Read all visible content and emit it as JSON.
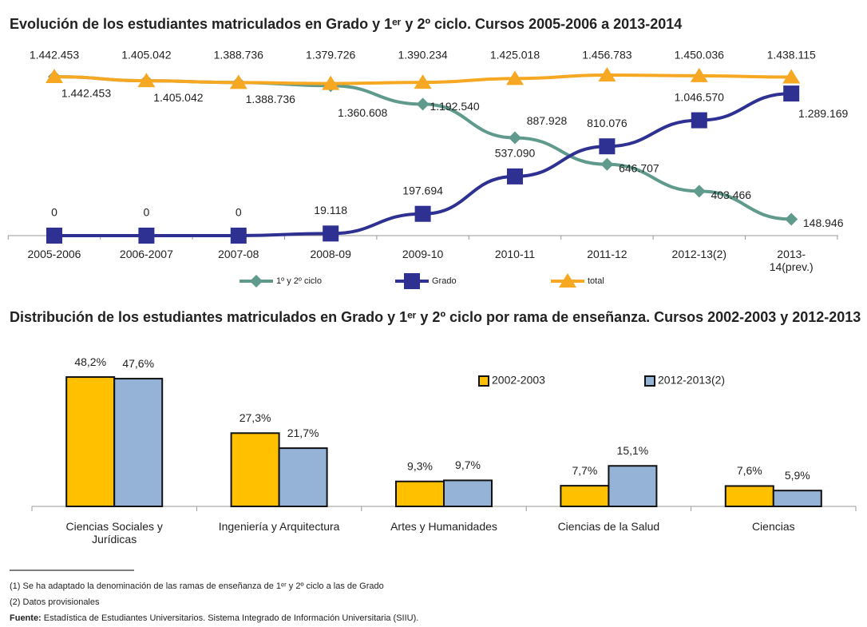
{
  "chart1": {
    "chart_data": {
      "type": "line",
      "title": "Evolución de los estudiantes matriculados en Grado y 1ᵉʳ y 2º ciclo. Cursos 2005-2006 a 2013-2014",
      "categories": [
        "2005-2006",
        "2006-2007",
        "2007-08",
        "2008-09",
        "2009-10",
        "2010-11",
        "2011-12",
        "2012-13(2)",
        "2013-14(prev.)"
      ],
      "ylim": [
        0,
        1500000
      ],
      "series": [
        {
          "name": "1º y 2º ciclo",
          "color": "#5f9a8c",
          "marker": "diamond",
          "values": [
            1442453,
            1405042,
            1388736,
            1360608,
            1192540,
            887928,
            646707,
            403466,
            148946
          ],
          "value_labels": [
            "1.442.453",
            "1.405.042",
            "1.388.736",
            "1.360.608",
            "1.192.540",
            "887.928",
            "646.707",
            "403.466",
            "148.946"
          ]
        },
        {
          "name": "Grado",
          "color": "#2e3192",
          "marker": "square",
          "values": [
            0,
            0,
            0,
            19118,
            197694,
            537090,
            810076,
            1046570,
            1289169
          ],
          "value_labels": [
            "0",
            "0",
            "0",
            "19.118",
            "197.694",
            "537.090",
            "810.076",
            "1.046.570",
            "1.289.169"
          ]
        },
        {
          "name": "total",
          "color": "#f7a823",
          "marker": "triangle",
          "values": [
            1442453,
            1405042,
            1388736,
            1379726,
            1390234,
            1425018,
            1456783,
            1450036,
            1438115
          ],
          "value_labels": [
            "1.442.453",
            "1.405.042",
            "1.388.736",
            "1.379.726",
            "1.390.234",
            "1.425.018",
            "1.456.783",
            "1.450.036",
            "1.438.115"
          ]
        }
      ]
    }
  },
  "chart2": {
    "chart_data": {
      "type": "bar",
      "title": "Distribución de los estudiantes matriculados en Grado y 1ᵉʳ y 2º ciclo por rama de enseñanza. Cursos 2002-2003 y 2012-2013",
      "categories": [
        "Ciencias Sociales y Jurídicas",
        "Ingeniería y Arquitectura",
        "Artes y Humanidades",
        "Ciencias de la Salud",
        "Ciencias"
      ],
      "ylim": [
        0,
        50
      ],
      "series": [
        {
          "name": "2002-2003",
          "color": "#ffc000",
          "values": [
            48.2,
            27.3,
            9.3,
            7.7,
            7.6
          ],
          "value_labels": [
            "48,2%",
            "27,3%",
            "9,3%",
            "7,7%",
            "7,6%"
          ]
        },
        {
          "name": "2012-2013(2)",
          "color": "#95b3d7",
          "values": [
            47.6,
            21.7,
            9.7,
            15.1,
            5.9
          ],
          "value_labels": [
            "47,6%",
            "21,7%",
            "9,7%",
            "15,1%",
            "5,9%"
          ]
        }
      ]
    }
  },
  "notes": [
    "(1) Se ha adaptado la denominación de las ramas de enseñanza de 1ᵉʳ y 2º ciclo a las de Grado",
    "(2) Datos provisionales"
  ],
  "source": {
    "label": "Fuente:",
    "text": "Estadística de Estudiantes Universitarios. Sistema Integrado de Información Universitaria (SIIU)."
  }
}
